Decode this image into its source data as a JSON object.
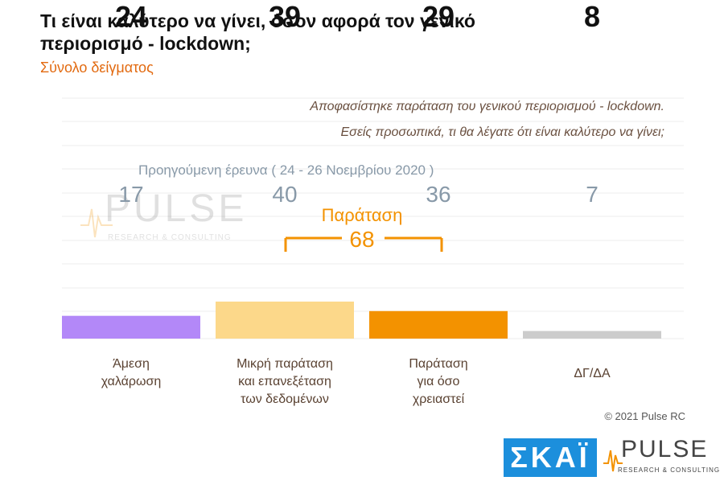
{
  "header": {
    "title": "Τι είναι καλύτερο να γίνει, όσον αφορά τον γενικό περιορισμό - lockdown;",
    "subtitle": "Σύνολο δείγματος"
  },
  "question": {
    "line1": "Αποφασίστηκε παράταση του γενικού περιορισμού - lockdown.",
    "line2": "Εσείς προσωπικά, τι θα λέγατε ότι είναι καλύτερο να γίνει;"
  },
  "previous_survey": {
    "label": "Προηγούμενη έρευνα  ( 24 - 26  Νοεμβρίου  2020 )",
    "values": [
      "17",
      "40",
      "36",
      "7"
    ]
  },
  "extension_group": {
    "label": "Παράταση",
    "total": "68"
  },
  "categories": [
    [
      "Άμεση",
      "χαλάρωση"
    ],
    [
      "Μικρή παράταση",
      "και επανεξέταση",
      "των δεδομένων"
    ],
    [
      "Παράταση",
      "για όσο",
      "χρειαστεί"
    ],
    [
      "ΔΓ/ΔΑ"
    ]
  ],
  "chart_data": {
    "type": "bar",
    "categories": [
      "Άμεση χαλάρωση",
      "Μικρή παράταση και επανεξέταση των δεδομένων",
      "Παράταση για όσο χρειαστεί",
      "ΔΓ/ΔΑ"
    ],
    "values": [
      24,
      39,
      29,
      8
    ],
    "labels": [
      "24",
      "39",
      "29",
      "8"
    ],
    "previous_values": [
      17,
      40,
      36,
      7
    ],
    "colors": [
      "#b388f8",
      "#fcd88a",
      "#f39200",
      "#cccccc"
    ],
    "ylim": [
      0,
      100
    ]
  },
  "footer": {
    "copyright": "© 2021 Pulse RC"
  },
  "logos": {
    "skai": "ΣΚΑΪ",
    "pulse": "PULSE",
    "pulse_sub": "RESEARCH & CONSULTING"
  }
}
